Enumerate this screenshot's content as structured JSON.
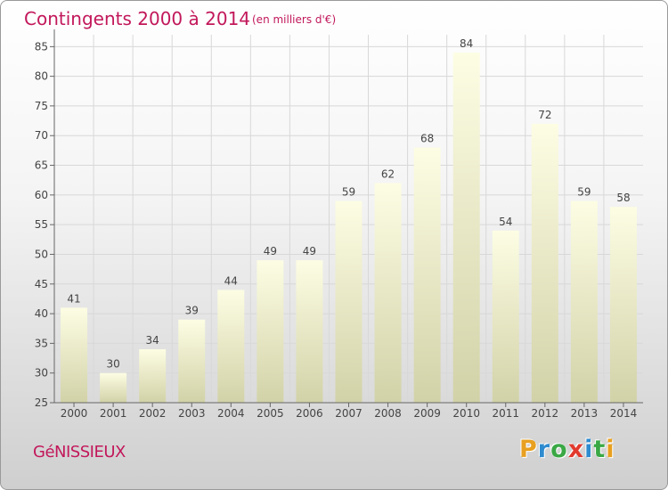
{
  "chart_data": {
    "type": "bar",
    "title": "Contingents 2000 à 2014",
    "subtitle": "(en milliers d'€)",
    "categories": [
      "2000",
      "2001",
      "2002",
      "2003",
      "2004",
      "2005",
      "2006",
      "2007",
      "2008",
      "2009",
      "2010",
      "2011",
      "2012",
      "2013",
      "2014"
    ],
    "values": [
      41,
      30,
      34,
      39,
      44,
      49,
      49,
      59,
      62,
      68,
      84,
      54,
      72,
      59,
      58
    ],
    "ylim": [
      25,
      87
    ],
    "yticks": [
      25,
      30,
      35,
      40,
      45,
      50,
      55,
      60,
      65,
      70,
      75,
      80,
      85
    ],
    "grid": true,
    "data_labels": true
  },
  "footer": {
    "commune": "GéNISSIEUX",
    "brand": "Proxiti",
    "brand_colors": [
      "#e8a020",
      "#2e8bcf",
      "#3aa845",
      "#e23a2e",
      "#2e8bcf",
      "#3aa845",
      "#e8a020"
    ]
  },
  "colors": {
    "title": "#c2185b",
    "bar_top": "#fdfde4",
    "bar_bottom": "#d2d2a8",
    "axis": "#666666",
    "grid": "#d8d8d8"
  }
}
